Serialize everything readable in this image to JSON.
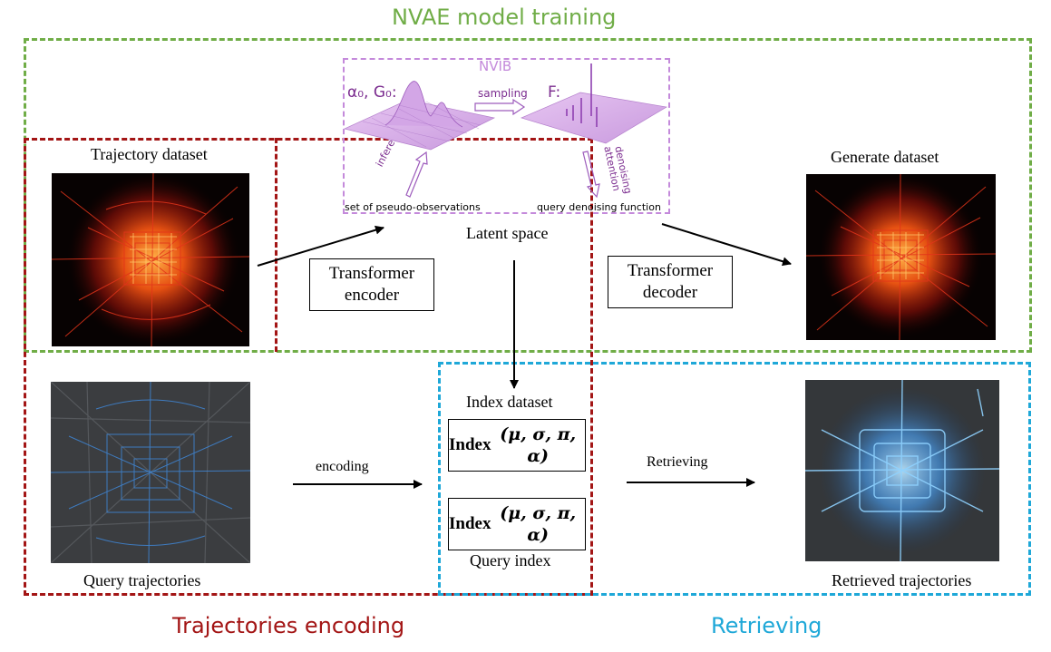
{
  "sections": {
    "training_title": "NVAE model training",
    "encoding_title": "Trajectories encoding",
    "retrieving_title": "Retrieving"
  },
  "colors": {
    "training": "#70ad47",
    "encoding": "#a31515",
    "retrieving": "#1fa8d8",
    "nvib": "#c48adb"
  },
  "nvib": {
    "title": "NVIB",
    "prior_label": "α₀, G₀:",
    "posterior_label": "F:",
    "sampling_label": "sampling",
    "inference_label": "inference",
    "denoising_label_1": "denoising",
    "denoising_label_2": "attention",
    "pseudo_obs_label": "set of pseudo-observations",
    "query_denoising_label": "query denoising function"
  },
  "labels": {
    "trajectory_dataset": "Trajectory dataset",
    "generate_dataset": "Generate dataset",
    "latent_space": "Latent space",
    "encoder_1": "Transformer",
    "encoder_2": "encoder",
    "decoder_1": "Transformer",
    "decoder_2": "decoder",
    "query_trajectories": "Query trajectories",
    "encoding": "encoding",
    "index_dataset": "Index dataset",
    "index_text": "Index",
    "index_params": "(μ, σ, π, α)",
    "query_index": "Query index",
    "retrieving": "Retrieving",
    "retrieved_trajectories": "Retrieved trajectories"
  }
}
